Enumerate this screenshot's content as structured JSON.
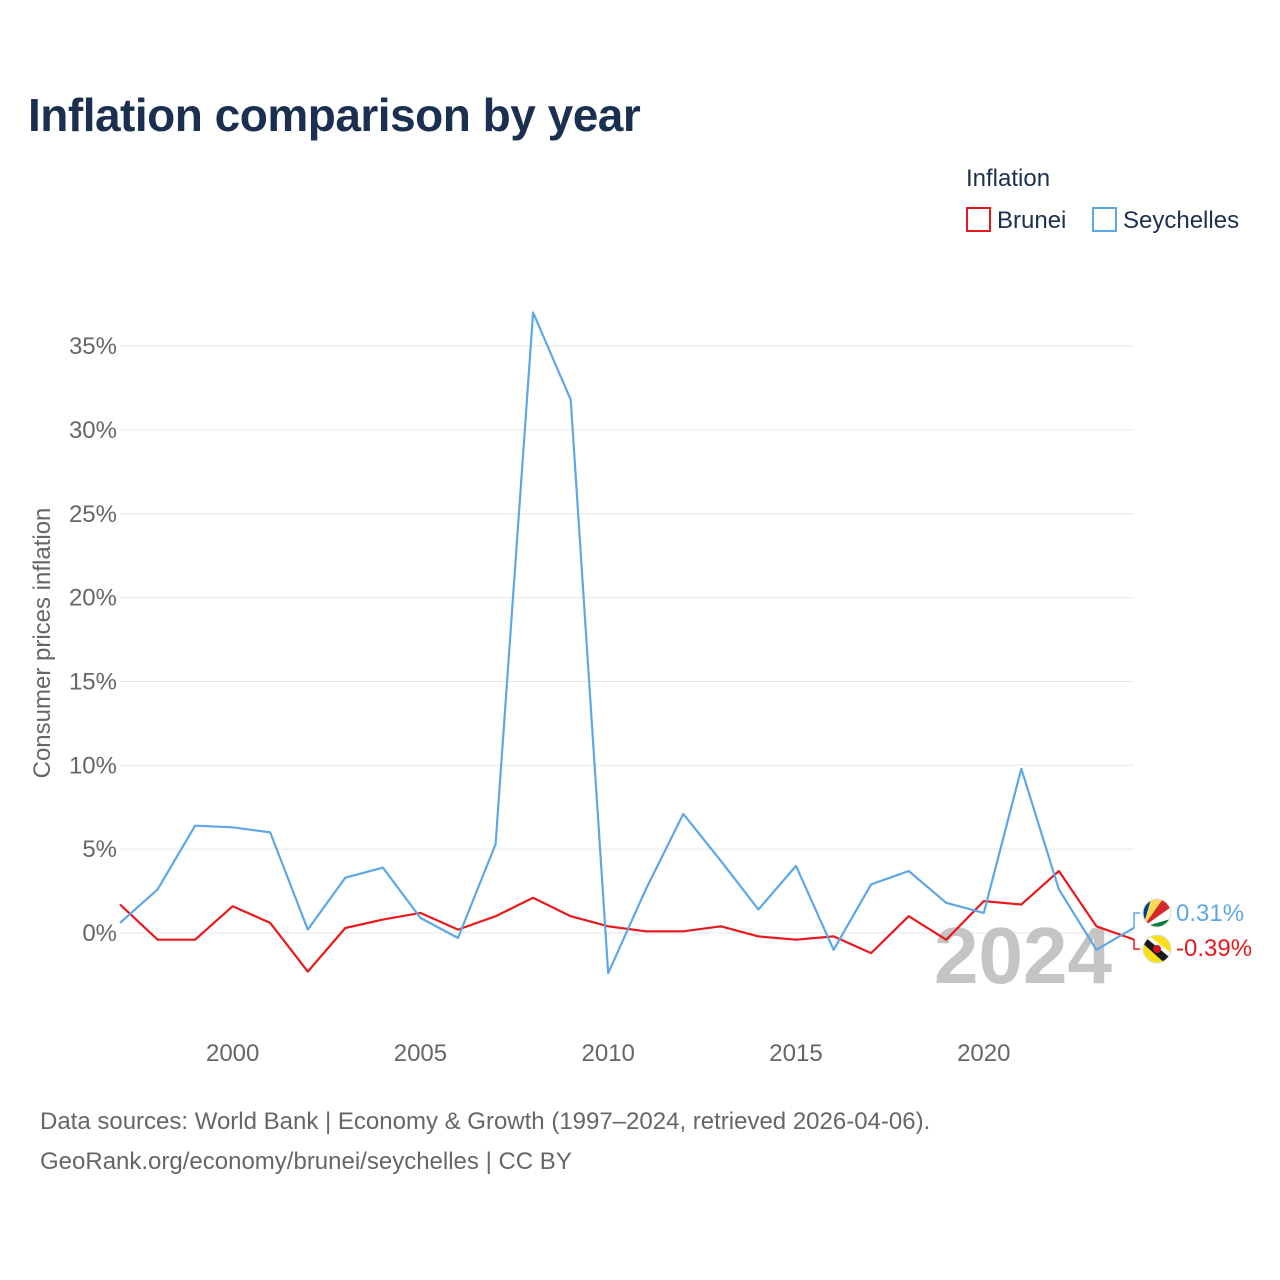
{
  "chart_data": {
    "type": "line",
    "title": "Inflation comparison by year",
    "ylabel": "Consumer prices inflation",
    "xlabel": "",
    "legend_title": "Inflation",
    "legend_position": "top-right",
    "xlim": [
      1997,
      2024
    ],
    "ylim": [
      -4.5,
      37
    ],
    "x_ticks": [
      2000,
      2005,
      2010,
      2015,
      2020
    ],
    "x_tick_labels": [
      "2000",
      "2005",
      "2010",
      "2015",
      "2020"
    ],
    "y_ticks": [
      0,
      5,
      10,
      15,
      20,
      25,
      30,
      35
    ],
    "y_tick_labels": [
      "0%",
      "5%",
      "10%",
      "15%",
      "20%",
      "25%",
      "30%",
      "35%"
    ],
    "grid": true,
    "year_watermark": "2024",
    "x": [
      1997,
      1998,
      1999,
      2000,
      2001,
      2002,
      2003,
      2004,
      2005,
      2006,
      2007,
      2008,
      2009,
      2010,
      2011,
      2012,
      2013,
      2014,
      2015,
      2016,
      2017,
      2018,
      2019,
      2020,
      2021,
      2022,
      2023,
      2024
    ],
    "series": [
      {
        "name": "Brunei",
        "color": "#e8191c",
        "values": [
          1.7,
          -0.4,
          -0.4,
          1.6,
          0.6,
          -2.3,
          0.3,
          0.8,
          1.2,
          0.2,
          1.0,
          2.1,
          1.0,
          0.4,
          0.1,
          0.1,
          0.4,
          -0.2,
          -0.4,
          -0.2,
          -1.2,
          1.0,
          -0.4,
          1.9,
          1.7,
          3.7,
          0.4,
          -0.39
        ],
        "end_label": "-0.39%",
        "flag_icon": "brunei-flag-icon"
      },
      {
        "name": "Seychelles",
        "color": "#5ea7e6",
        "values": [
          0.6,
          2.6,
          6.4,
          6.3,
          6.0,
          0.2,
          3.3,
          3.9,
          0.9,
          -0.3,
          5.3,
          37.0,
          31.8,
          -2.4,
          2.6,
          7.1,
          4.3,
          1.4,
          4.0,
          -1.0,
          2.9,
          3.7,
          1.8,
          1.2,
          9.8,
          2.6,
          -1.0,
          0.31
        ],
        "end_label": "0.31%",
        "flag_icon": "seychelles-flag-icon"
      }
    ]
  },
  "footer": {
    "line1": "Data sources: World Bank | Economy & Growth (1997–2024, retrieved 2026-04-06).",
    "line2": "GeoRank.org/economy/brunei/seychelles | CC BY"
  }
}
